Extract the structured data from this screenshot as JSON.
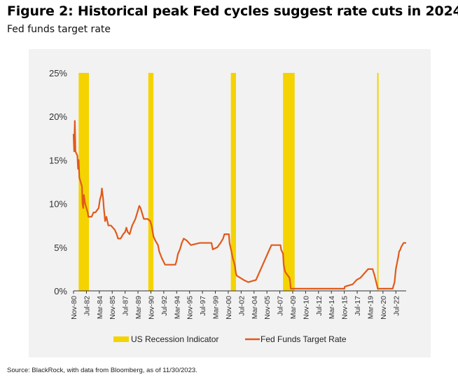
{
  "title": "Figure 2: Historical peak Fed cycles suggest rate cuts in 2024",
  "subtitle": "Fed funds target rate",
  "source": "Source: BlackRock, with data from Bloomberg, as of 11/30/2023.",
  "colors": {
    "recession": "#f5d300",
    "rate_line": "#e05a1b",
    "panel_bg": "#f2f2f2"
  },
  "chart_data": {
    "type": "line",
    "title": "Figure 2: Historical peak Fed cycles suggest rate cuts in 2024",
    "subtitle": "Fed funds target rate",
    "xlim": [
      "1980-11",
      "2023-11"
    ],
    "ylim": [
      0,
      25
    ],
    "y_ticks": [
      "0%",
      "5%",
      "10%",
      "15%",
      "20%",
      "25%"
    ],
    "x_tick_labels": [
      {
        "date": "1980-11",
        "label": "Nov-80"
      },
      {
        "date": "1982-07",
        "label": "Jul-82"
      },
      {
        "date": "1984-03",
        "label": "Mar-84"
      },
      {
        "date": "1985-11",
        "label": "Nov-85"
      },
      {
        "date": "1987-07",
        "label": "Jul-87"
      },
      {
        "date": "1989-03",
        "label": "Mar-89"
      },
      {
        "date": "1990-11",
        "label": "Nov-90"
      },
      {
        "date": "1992-07",
        "label": "Jul-92"
      },
      {
        "date": "1994-03",
        "label": "Mar-94"
      },
      {
        "date": "1995-11",
        "label": "Nov-95"
      },
      {
        "date": "1997-07",
        "label": "Jul-97"
      },
      {
        "date": "1999-03",
        "label": "Mar-99"
      },
      {
        "date": "2000-11",
        "label": "Nov-00"
      },
      {
        "date": "2002-07",
        "label": "Jul-02"
      },
      {
        "date": "2004-03",
        "label": "Mar-04"
      },
      {
        "date": "2005-11",
        "label": "Nov-05"
      },
      {
        "date": "2007-07",
        "label": "Jul-07"
      },
      {
        "date": "2009-03",
        "label": "Mar-09"
      },
      {
        "date": "2010-11",
        "label": "Nov-10"
      },
      {
        "date": "2012-07",
        "label": "Jul-12"
      },
      {
        "date": "2014-03",
        "label": "Mar-14"
      },
      {
        "date": "2015-11",
        "label": "Nov-15"
      },
      {
        "date": "2017-07",
        "label": "Jul-17"
      },
      {
        "date": "2019-03",
        "label": "Mar-19"
      },
      {
        "date": "2020-11",
        "label": "Nov-20"
      },
      {
        "date": "2022-07",
        "label": "Jul-22"
      }
    ],
    "grid": false,
    "legend_position": "bottom",
    "legend": [
      "US Recession Indicator",
      "Fed Funds Target Rate"
    ],
    "recessions": [
      {
        "start": "1981-07",
        "end": "1982-11"
      },
      {
        "start": "1990-07",
        "end": "1991-03"
      },
      {
        "start": "2001-03",
        "end": "2001-11"
      },
      {
        "start": "2007-12",
        "end": "2009-06"
      },
      {
        "start": "2020-02",
        "end": "2020-04"
      }
    ],
    "series": [
      {
        "name": "Fed Funds Target Rate",
        "points": [
          [
            "1980-11",
            18.0
          ],
          [
            "1980-12",
            16.0
          ],
          [
            "1981-01",
            19.5
          ],
          [
            "1981-02",
            16.0
          ],
          [
            "1981-05",
            15.5
          ],
          [
            "1981-06",
            14.0
          ],
          [
            "1981-07",
            15.0
          ],
          [
            "1981-08",
            13.0
          ],
          [
            "1981-10",
            12.5
          ],
          [
            "1981-12",
            12.0
          ],
          [
            "1982-01",
            10.0
          ],
          [
            "1982-02",
            9.5
          ],
          [
            "1982-03",
            11.0
          ],
          [
            "1982-05",
            10.0
          ],
          [
            "1982-07",
            9.5
          ],
          [
            "1982-09",
            9.0
          ],
          [
            "1982-10",
            8.5
          ],
          [
            "1983-03",
            8.5
          ],
          [
            "1983-06",
            9.0
          ],
          [
            "1983-09",
            9.0
          ],
          [
            "1984-02",
            9.5
          ],
          [
            "1984-04",
            10.5
          ],
          [
            "1984-06",
            11.0
          ],
          [
            "1984-07",
            11.75
          ],
          [
            "1984-09",
            10.5
          ],
          [
            "1984-10",
            9.5
          ],
          [
            "1984-12",
            8.0
          ],
          [
            "1985-02",
            8.5
          ],
          [
            "1985-05",
            7.5
          ],
          [
            "1985-09",
            7.5
          ],
          [
            "1986-03",
            7.0
          ],
          [
            "1986-06",
            6.5
          ],
          [
            "1986-08",
            6.0
          ],
          [
            "1986-12",
            6.0
          ],
          [
            "1987-04",
            6.5
          ],
          [
            "1987-07",
            6.75
          ],
          [
            "1987-09",
            7.25
          ],
          [
            "1987-11",
            6.75
          ],
          [
            "1988-02",
            6.5
          ],
          [
            "1988-06",
            7.5
          ],
          [
            "1988-11",
            8.25
          ],
          [
            "1989-02",
            9.0
          ],
          [
            "1989-05",
            9.75
          ],
          [
            "1989-07",
            9.5
          ],
          [
            "1989-09",
            9.0
          ],
          [
            "1989-12",
            8.25
          ],
          [
            "1990-06",
            8.25
          ],
          [
            "1990-10",
            8.0
          ],
          [
            "1990-12",
            7.5
          ],
          [
            "1991-03",
            6.25
          ],
          [
            "1991-06",
            5.75
          ],
          [
            "1991-10",
            5.25
          ],
          [
            "1991-12",
            4.5
          ],
          [
            "1992-04",
            3.75
          ],
          [
            "1992-09",
            3.0
          ],
          [
            "1993-06",
            3.0
          ],
          [
            "1994-01",
            3.0
          ],
          [
            "1994-03",
            3.5
          ],
          [
            "1994-05",
            4.25
          ],
          [
            "1994-08",
            4.75
          ],
          [
            "1994-11",
            5.5
          ],
          [
            "1995-02",
            6.0
          ],
          [
            "1995-07",
            5.75
          ],
          [
            "1996-01",
            5.25
          ],
          [
            "1997-03",
            5.5
          ],
          [
            "1998-09",
            5.5
          ],
          [
            "1998-11",
            4.75
          ],
          [
            "1999-06",
            5.0
          ],
          [
            "1999-11",
            5.5
          ],
          [
            "2000-03",
            6.0
          ],
          [
            "2000-05",
            6.5
          ],
          [
            "2000-12",
            6.5
          ],
          [
            "2001-01",
            5.5
          ],
          [
            "2001-04",
            4.5
          ],
          [
            "2001-06",
            3.75
          ],
          [
            "2001-09",
            3.0
          ],
          [
            "2001-11",
            2.0
          ],
          [
            "2001-12",
            1.75
          ],
          [
            "2002-11",
            1.25
          ],
          [
            "2003-06",
            1.0
          ],
          [
            "2004-06",
            1.25
          ],
          [
            "2004-12",
            2.25
          ],
          [
            "2005-06",
            3.25
          ],
          [
            "2005-12",
            4.25
          ],
          [
            "2006-06",
            5.25
          ],
          [
            "2007-08",
            5.25
          ],
          [
            "2007-09",
            4.75
          ],
          [
            "2007-12",
            4.25
          ],
          [
            "2008-01",
            3.0
          ],
          [
            "2008-03",
            2.25
          ],
          [
            "2008-05",
            2.0
          ],
          [
            "2008-10",
            1.5
          ],
          [
            "2008-11",
            1.0
          ],
          [
            "2008-12",
            0.25
          ],
          [
            "2015-11",
            0.25
          ],
          [
            "2015-12",
            0.5
          ],
          [
            "2016-12",
            0.75
          ],
          [
            "2017-03",
            1.0
          ],
          [
            "2017-06",
            1.25
          ],
          [
            "2017-12",
            1.5
          ],
          [
            "2018-03",
            1.75
          ],
          [
            "2018-06",
            2.0
          ],
          [
            "2018-09",
            2.25
          ],
          [
            "2018-12",
            2.5
          ],
          [
            "2019-07",
            2.5
          ],
          [
            "2019-08",
            2.25
          ],
          [
            "2019-10",
            1.75
          ],
          [
            "2020-03",
            0.25
          ],
          [
            "2022-02",
            0.25
          ],
          [
            "2022-03",
            0.5
          ],
          [
            "2022-05",
            1.0
          ],
          [
            "2022-06",
            1.75
          ],
          [
            "2022-07",
            2.5
          ],
          [
            "2022-09",
            3.25
          ],
          [
            "2022-11",
            4.0
          ],
          [
            "2022-12",
            4.5
          ],
          [
            "2023-02",
            4.75
          ],
          [
            "2023-03",
            5.0
          ],
          [
            "2023-05",
            5.25
          ],
          [
            "2023-07",
            5.5
          ],
          [
            "2023-11",
            5.5
          ]
        ]
      }
    ]
  }
}
